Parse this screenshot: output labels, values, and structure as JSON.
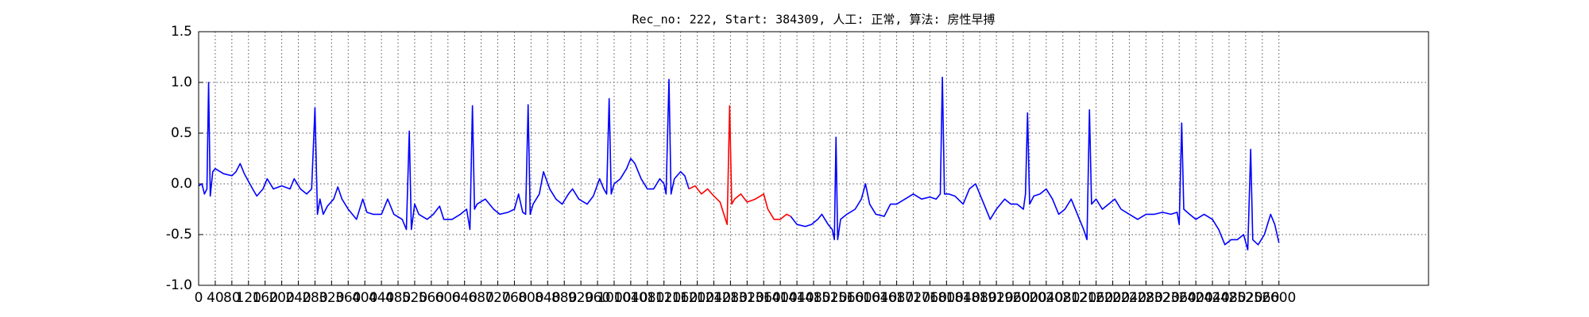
{
  "chart_data": {
    "type": "line",
    "title": "Rec_no: 222, Start: 384309, 人工: 正常, 算法: 房性早搏",
    "xlim": [
      0,
      2960
    ],
    "ylim": [
      -1.0,
      1.5
    ],
    "xticks": [
      0,
      40,
      80,
      120,
      160,
      200,
      240,
      280,
      320,
      360,
      400,
      440,
      480,
      520,
      560,
      600,
      640,
      680,
      720,
      760,
      800,
      840,
      880,
      920,
      960,
      1000,
      1040,
      1080,
      1120,
      1160,
      1200,
      1240,
      1280,
      1320,
      1360,
      1400,
      1440,
      1480,
      1520,
      1560,
      1600,
      1640,
      1680,
      1720,
      1760,
      1800,
      1840,
      1880,
      1920,
      1960,
      2000,
      2040,
      2080,
      2120,
      2160,
      2200,
      2240,
      2280,
      2320,
      2360,
      2400,
      2440,
      2480,
      2520,
      2560,
      2600
    ],
    "yticks": [
      {
        "value": -1.0,
        "label": "-1.0"
      },
      -0.5,
      {
        "value": 0.0,
        "label": "0.0"
      },
      0.5,
      {
        "value": 1.0,
        "label": "1.0"
      },
      1.5
    ],
    "grid": true,
    "series": [
      {
        "color": "#0000ff",
        "x": [
          0,
          8,
          14,
          20,
          24,
          28,
          34,
          40,
          60,
          80,
          90,
          100,
          110,
          130,
          140,
          155,
          165,
          180,
          200,
          220,
          230,
          245,
          260,
          272,
          280,
          286,
          292,
          300,
          310,
          325,
          335,
          345,
          360,
          380,
          395,
          405,
          420,
          440,
          455,
          470,
          490,
          500,
          507,
          512,
          520,
          530,
          550,
          565,
          580,
          590,
          610,
          630,
          645,
          653,
          659,
          664,
          670,
          690,
          710,
          725,
          745,
          760,
          770,
          780,
          787,
          793,
          798,
          805,
          820,
          830,
          845,
          860,
          875,
          890,
          900,
          915,
          935,
          950,
          965,
          975,
          982,
          988,
          993,
          1000,
          1015,
          1030,
          1040,
          1050,
          1065,
          1080,
          1095,
          1110,
          1120,
          1125,
          1132,
          1137,
          1145,
          1160,
          1170,
          1180,
          1195,
          1210,
          1225,
          1240,
          1255,
          1268,
          1272,
          1278,
          1283,
          1290,
          1305,
          1320,
          1340,
          1360,
          1370,
          1385,
          1400,
          1415,
          1425,
          1440,
          1460,
          1475,
          1490,
          1500,
          1515,
          1525,
          1530,
          1534,
          1538,
          1545,
          1560,
          1580,
          1595,
          1605,
          1615,
          1630,
          1650,
          1665,
          1680,
          1700,
          1720,
          1740,
          1760,
          1775,
          1785,
          1790,
          1795,
          1805,
          1820,
          1840,
          1855,
          1870,
          1880,
          1890,
          1905,
          1920,
          1940,
          1955,
          1970,
          1985,
          1990,
          1995,
          2000,
          2010,
          2025,
          2040,
          2055,
          2070,
          2085,
          2100,
          2115,
          2130,
          2138,
          2144,
          2149,
          2160,
          2175,
          2190,
          2205,
          2220,
          2240,
          2260,
          2280,
          2300,
          2320,
          2340,
          2355,
          2360,
          2366,
          2371,
          2385,
          2400,
          2420,
          2440,
          2455,
          2470,
          2485,
          2500,
          2515,
          2525,
          2532,
          2537,
          2550,
          2565,
          2580,
          2590,
          2600
        ],
        "values": [
          -0.02,
          0.0,
          -0.1,
          -0.05,
          1.0,
          -0.12,
          0.12,
          0.15,
          0.1,
          0.08,
          0.12,
          0.2,
          0.1,
          -0.05,
          -0.12,
          -0.05,
          0.05,
          -0.05,
          -0.02,
          -0.05,
          0.05,
          -0.05,
          -0.1,
          -0.05,
          0.75,
          -0.3,
          -0.15,
          -0.3,
          -0.22,
          -0.15,
          -0.03,
          -0.15,
          -0.25,
          -0.35,
          -0.15,
          -0.28,
          -0.3,
          -0.3,
          -0.15,
          -0.3,
          -0.35,
          -0.45,
          0.52,
          -0.45,
          -0.2,
          -0.3,
          -0.35,
          -0.3,
          -0.22,
          -0.35,
          -0.35,
          -0.3,
          -0.25,
          -0.45,
          0.77,
          -0.25,
          -0.2,
          -0.15,
          -0.25,
          -0.3,
          -0.28,
          -0.25,
          -0.1,
          -0.28,
          -0.3,
          0.78,
          -0.3,
          -0.2,
          -0.1,
          0.12,
          -0.05,
          -0.15,
          -0.2,
          -0.1,
          -0.05,
          -0.15,
          -0.2,
          -0.12,
          0.05,
          -0.05,
          -0.1,
          0.84,
          -0.1,
          0.0,
          0.05,
          0.15,
          0.25,
          0.2,
          0.05,
          -0.05,
          -0.05,
          0.05,
          0.0,
          -0.1,
          1.03,
          -0.1,
          0.05,
          0.12,
          0.08,
          -0.05,
          null,
          null,
          null,
          null,
          null,
          null,
          null,
          null,
          null,
          null,
          null,
          null,
          null,
          null,
          null,
          null,
          null,
          null,
          -0.32,
          -0.4,
          -0.42,
          -0.4,
          -0.35,
          -0.3,
          -0.4,
          -0.45,
          -0.55,
          0.46,
          -0.55,
          -0.35,
          -0.3,
          -0.25,
          -0.15,
          0.0,
          -0.2,
          -0.3,
          -0.32,
          -0.2,
          -0.2,
          -0.15,
          -0.1,
          -0.15,
          -0.13,
          -0.15,
          -0.1,
          1.05,
          -0.1,
          -0.1,
          -0.12,
          -0.2,
          -0.05,
          0.0,
          -0.1,
          -0.2,
          -0.35,
          -0.25,
          -0.15,
          -0.2,
          -0.2,
          -0.25,
          -0.1,
          0.7,
          -0.2,
          -0.12,
          -0.1,
          -0.05,
          -0.15,
          -0.3,
          -0.25,
          -0.15,
          -0.3,
          -0.45,
          -0.55,
          0.73,
          -0.2,
          -0.15,
          -0.25,
          -0.2,
          -0.15,
          -0.25,
          -0.3,
          -0.35,
          -0.3,
          -0.3,
          -0.28,
          -0.3,
          -0.28,
          -0.4,
          0.6,
          -0.25,
          -0.3,
          -0.35,
          -0.3,
          -0.35,
          -0.45,
          -0.6,
          -0.55,
          -0.55,
          -0.5,
          -0.65,
          0.34,
          -0.55,
          -0.6,
          -0.5,
          -0.3,
          -0.4,
          -0.58
        ]
      },
      {
        "color": "#ff0000",
        "x": [
          1180,
          1195,
          1210,
          1225,
          1240,
          1255,
          1268,
          1272,
          1278,
          1283,
          1290,
          1305,
          1320,
          1340,
          1360,
          1370,
          1385,
          1400,
          1415,
          1425
        ],
        "values": [
          -0.05,
          -0.02,
          -0.1,
          -0.05,
          -0.12,
          -0.18,
          -0.35,
          -0.4,
          0.77,
          -0.2,
          -0.15,
          -0.1,
          -0.18,
          -0.15,
          -0.1,
          -0.25,
          -0.35,
          -0.35,
          -0.3,
          -0.32
        ]
      }
    ]
  }
}
